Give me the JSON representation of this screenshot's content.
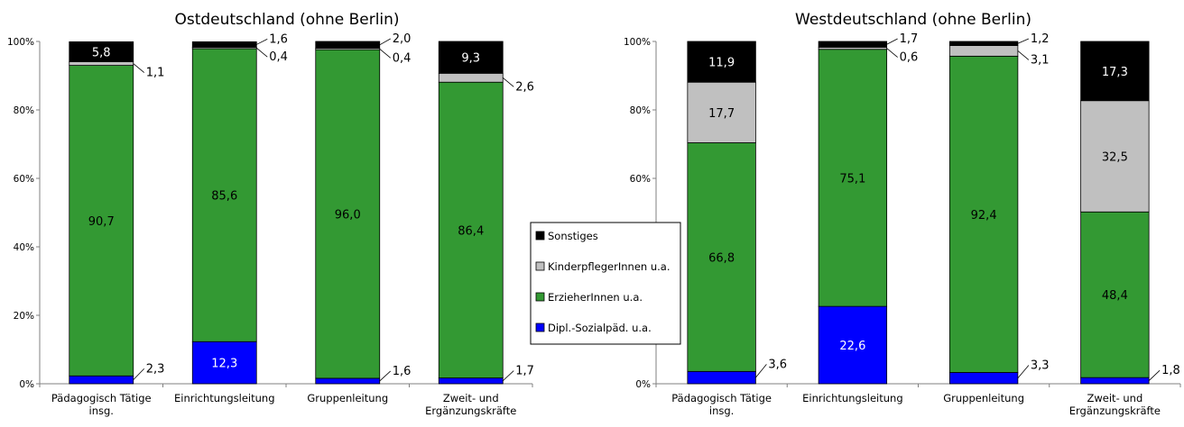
{
  "legend": {
    "items": [
      {
        "label": "Sonstiges",
        "color": "#000000"
      },
      {
        "label": "KinderpflegerInnen u.a.",
        "color": "#c0c0c0"
      },
      {
        "label": "ErzieherInnen u.a.",
        "color": "#339933"
      },
      {
        "label": "Dipl.-Sozialpäd. u.a.",
        "color": "#0000ff"
      }
    ]
  },
  "chart_data": [
    {
      "type": "bar",
      "stacked": true,
      "title": "Ostdeutschland (ohne Berlin)",
      "ylim": [
        0,
        100
      ],
      "yticks": [
        "0%",
        "20%",
        "40%",
        "60%",
        "80%",
        "100%"
      ],
      "categories": [
        [
          "Pädagogisch Tätige",
          "insg."
        ],
        [
          "Einrichtungsleitung"
        ],
        [
          "Gruppenleitung"
        ],
        [
          "Zweit- und",
          "Ergänzungskräfte"
        ]
      ],
      "series": [
        {
          "name": "Dipl.-Sozialpäd. u.a.",
          "color": "#0000ff",
          "values": [
            2.3,
            12.3,
            1.6,
            1.7
          ],
          "labels": [
            "2,3",
            "12,3",
            "1,6",
            "1,7"
          ]
        },
        {
          "name": "ErzieherInnen u.a.",
          "color": "#339933",
          "values": [
            90.7,
            85.6,
            96.0,
            86.4
          ],
          "labels": [
            "90,7",
            "85,6",
            "96,0",
            "86,4"
          ]
        },
        {
          "name": "KinderpflegerInnen u.a.",
          "color": "#c0c0c0",
          "values": [
            1.1,
            0.4,
            0.4,
            2.6
          ],
          "labels": [
            "1,1",
            "0,4",
            "0,4",
            "2,6"
          ]
        },
        {
          "name": "Sonstiges",
          "color": "#000000",
          "values": [
            5.8,
            1.6,
            2.0,
            9.3
          ],
          "labels": [
            "5,8",
            "1,6",
            "2,0",
            "9,3"
          ]
        }
      ]
    },
    {
      "type": "bar",
      "stacked": true,
      "title": "Westdeutschland (ohne Berlin)",
      "ylim": [
        0,
        100
      ],
      "yticks": [
        "0%",
        "20%",
        "40%",
        "60%",
        "80%",
        "100%"
      ],
      "categories": [
        [
          "Pädagogisch Tätige",
          "insg."
        ],
        [
          "Einrichtungsleitung"
        ],
        [
          "Gruppenleitung"
        ],
        [
          "Zweit- und",
          "Ergänzungskräfte"
        ]
      ],
      "series": [
        {
          "name": "Dipl.-Sozialpäd. u.a.",
          "color": "#0000ff",
          "values": [
            3.6,
            22.6,
            3.3,
            1.8
          ],
          "labels": [
            "3,6",
            "22,6",
            "3,3",
            "1,8"
          ]
        },
        {
          "name": "ErzieherInnen u.a.",
          "color": "#339933",
          "values": [
            66.8,
            75.1,
            92.4,
            48.4
          ],
          "labels": [
            "66,8",
            "75,1",
            "92,4",
            "48,4"
          ]
        },
        {
          "name": "KinderpflegerInnen u.a.",
          "color": "#c0c0c0",
          "values": [
            17.7,
            0.6,
            3.1,
            32.5
          ],
          "labels": [
            "17,7",
            "0,6",
            "3,1",
            "32,5"
          ]
        },
        {
          "name": "Sonstiges",
          "color": "#000000",
          "values": [
            11.9,
            1.7,
            1.2,
            17.3
          ],
          "labels": [
            "11,9",
            "1,7",
            "1,2",
            "17,3"
          ]
        }
      ]
    }
  ]
}
